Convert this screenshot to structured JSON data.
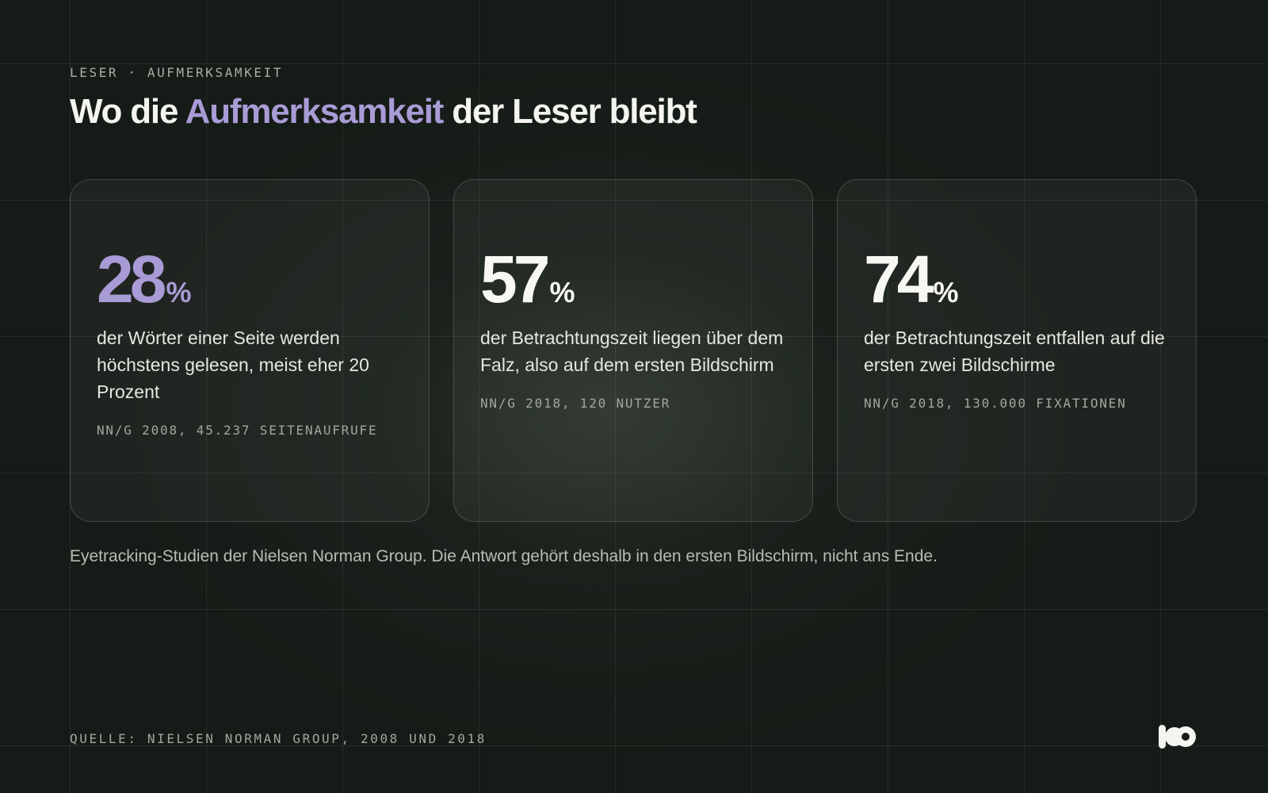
{
  "header": {
    "eyebrow": "LESER · AUFMERKSAMKEIT",
    "title_before": "Wo die",
    "title_accent": "Aufmerksamkeit",
    "title_after": "der Leser bleibt"
  },
  "cards": [
    {
      "value": "28",
      "unit": "%",
      "description": "der Wörter einer Seite werden höchstens gelesen, meist eher 20 Prozent",
      "reference": "NN/G 2008, 45.237 SEITENAUFRUFE"
    },
    {
      "value": "57",
      "unit": "%",
      "description": "der Betrachtungszeit liegen über dem Falz, also auf dem ersten Bildschirm",
      "reference": "NN/G 2018, 120 NUTZER"
    },
    {
      "value": "74",
      "unit": "%",
      "description": "der Betrachtungszeit entfallen auf die ersten zwei Bildschirme",
      "reference": "NN/G 2018, 130.000 FIXATIONEN"
    }
  ],
  "summary": "Eyetracking-Studien der Nielsen Norman Group. Die Antwort gehört deshalb in den ersten Bildschirm, nicht ans Ende.",
  "footer": {
    "source": "QUELLE: NIELSEN NORMAN GROUP, 2008 UND 2018",
    "logo_icon": "brand-logo-icon"
  },
  "colors": {
    "background": "#151b16",
    "accent": "#a99bd6",
    "text": "#f4f4f1",
    "muted": "#a3a7a0"
  }
}
